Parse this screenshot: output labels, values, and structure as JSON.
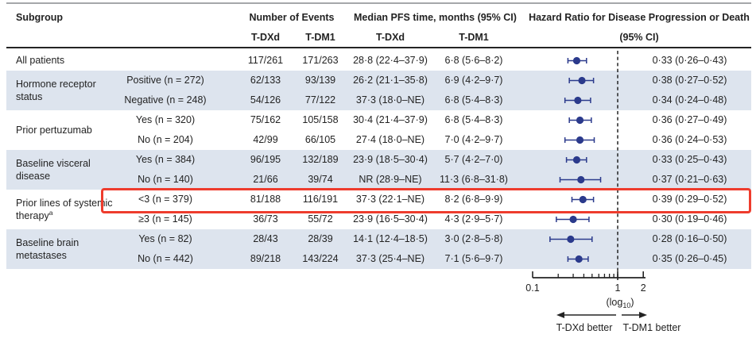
{
  "header": {
    "subgroup": "Subgroup",
    "events_group": "Number of Events",
    "pfs_group": "Median PFS time, months (95% CI)",
    "hr_group": "Hazard Ratio for Disease Progression or Death",
    "hr_group_line2": "(95% CI)",
    "events_tdxd": "T-DXd",
    "events_tdm1": "T-DM1",
    "pfs_tdxd": "T-DXd",
    "pfs_tdm1": "T-DM1"
  },
  "groups": [
    {
      "label": "All patients",
      "footnote": "",
      "row_start": 0,
      "row_span": 1
    },
    {
      "label": "Hormone receptor status",
      "footnote": "",
      "row_start": 1,
      "row_span": 2
    },
    {
      "label": "Prior pertuzumab",
      "footnote": "",
      "row_start": 3,
      "row_span": 2
    },
    {
      "label": "Baseline visceral disease",
      "footnote": "",
      "row_start": 5,
      "row_span": 2
    },
    {
      "label": "Prior lines of systemic therapy",
      "footnote": "a",
      "row_start": 7,
      "row_span": 2
    },
    {
      "label": "Baseline brain metastases",
      "footnote": "",
      "row_start": 9,
      "row_span": 2
    }
  ],
  "rows": [
    {
      "sub": "",
      "ev_tdxd": "117/261",
      "ev_tdm1": "171/263",
      "pfs_tdxd": "28·8 (22·4–37·9)",
      "pfs_tdm1": "6·8 (5·6–8·2)",
      "hr_label": "0·33 (0·26–0·43)",
      "hr": 0.33,
      "ci_low": 0.26,
      "ci_high": 0.43,
      "shaded": false,
      "highlighted": false
    },
    {
      "sub": "Positive (n = 272)",
      "ev_tdxd": "62/133",
      "ev_tdm1": "93/139",
      "pfs_tdxd": "26·2 (21·1–35·8)",
      "pfs_tdm1": "6·9 (4·2–9·7)",
      "hr_label": "0·38 (0·27–0·52)",
      "hr": 0.38,
      "ci_low": 0.27,
      "ci_high": 0.52,
      "shaded": true,
      "highlighted": false
    },
    {
      "sub": "Negative (n = 248)",
      "ev_tdxd": "54/126",
      "ev_tdm1": "77/122",
      "pfs_tdxd": "37·3 (18·0–NE)",
      "pfs_tdm1": "6·8 (5·4–8·3)",
      "hr_label": "0·34 (0·24–0·48)",
      "hr": 0.34,
      "ci_low": 0.24,
      "ci_high": 0.48,
      "shaded": true,
      "highlighted": false
    },
    {
      "sub": "Yes (n = 320)",
      "ev_tdxd": "75/162",
      "ev_tdm1": "105/158",
      "pfs_tdxd": "30·4 (21·4–37·9)",
      "pfs_tdm1": "6·8 (5·4–8·3)",
      "hr_label": "0·36 (0·27–0·49)",
      "hr": 0.36,
      "ci_low": 0.27,
      "ci_high": 0.49,
      "shaded": false,
      "highlighted": false
    },
    {
      "sub": "No (n = 204)",
      "ev_tdxd": "42/99",
      "ev_tdm1": "66/105",
      "pfs_tdxd": "27·4 (18·0–NE)",
      "pfs_tdm1": "7·0 (4·2–9·7)",
      "hr_label": "0·36 (0·24–0·53)",
      "hr": 0.36,
      "ci_low": 0.24,
      "ci_high": 0.53,
      "shaded": false,
      "highlighted": false
    },
    {
      "sub": "Yes (n = 384)",
      "ev_tdxd": "96/195",
      "ev_tdm1": "132/189",
      "pfs_tdxd": "23·9 (18·5–30·4)",
      "pfs_tdm1": "5·7 (4·2–7·0)",
      "hr_label": "0·33 (0·25–0·43)",
      "hr": 0.33,
      "ci_low": 0.25,
      "ci_high": 0.43,
      "shaded": true,
      "highlighted": false
    },
    {
      "sub": "No (n = 140)",
      "ev_tdxd": "21/66",
      "ev_tdm1": "39/74",
      "pfs_tdxd": "NR (28·9–NE)",
      "pfs_tdm1": "11·3 (6·8–31·8)",
      "hr_label": "0·37 (0·21–0·63)",
      "hr": 0.37,
      "ci_low": 0.21,
      "ci_high": 0.63,
      "shaded": true,
      "highlighted": false
    },
    {
      "sub": "<3 (n = 379)",
      "ev_tdxd": "81/188",
      "ev_tdm1": "116/191",
      "pfs_tdxd": "37·3 (22·1–NE)",
      "pfs_tdm1": "8·2 (6·8–9·9)",
      "hr_label": "0·39 (0·29–0·52)",
      "hr": 0.39,
      "ci_low": 0.29,
      "ci_high": 0.52,
      "shaded": false,
      "highlighted": true
    },
    {
      "sub": "≥3 (n = 145)",
      "ev_tdxd": "36/73",
      "ev_tdm1": "55/72",
      "pfs_tdxd": "23·9 (16·5–30·4)",
      "pfs_tdm1": "4·3 (2·9–5·7)",
      "hr_label": "0·30 (0·19–0·46)",
      "hr": 0.3,
      "ci_low": 0.19,
      "ci_high": 0.46,
      "shaded": false,
      "highlighted": false
    },
    {
      "sub": "Yes (n = 82)",
      "ev_tdxd": "28/43",
      "ev_tdm1": "28/39",
      "pfs_tdxd": "14·1 (12·4–18·5)",
      "pfs_tdm1": "3·0 (2·8–5·8)",
      "hr_label": "0·28 (0·16–0·50)",
      "hr": 0.28,
      "ci_low": 0.16,
      "ci_high": 0.5,
      "shaded": true,
      "highlighted": false
    },
    {
      "sub": "No (n = 442)",
      "ev_tdxd": "89/218",
      "ev_tdm1": "143/224",
      "pfs_tdxd": "37·3 (25·4–NE)",
      "pfs_tdm1": "7·1 (5·6–9·7)",
      "hr_label": "0·35 (0·26–0·45)",
      "hr": 0.35,
      "ci_low": 0.26,
      "ci_high": 0.45,
      "shaded": true,
      "highlighted": false
    }
  ],
  "chart_data": {
    "type": "scatter",
    "variant": "forest-plot",
    "x_axis": {
      "scale": "log10",
      "min": 0.1,
      "max": 2,
      "labeled_ticks": [
        0.1,
        1,
        2
      ],
      "tick_labels": [
        "0.1",
        "1",
        "2"
      ],
      "minor_ticks": [
        0.2,
        0.3,
        0.4,
        0.5,
        0.6,
        0.7,
        0.8,
        0.9
      ],
      "scale_label_pre": "(log",
      "scale_label_sub": "10",
      "scale_label_post": ")"
    },
    "reference_line": 1,
    "direction_labels": {
      "left": "T-DXd better",
      "right": "T-DM1 better"
    },
    "points": [
      {
        "subgroup": "All patients",
        "hr": 0.33,
        "ci_low": 0.26,
        "ci_high": 0.43
      },
      {
        "subgroup": "Hormone receptor status: Positive (n = 272)",
        "hr": 0.38,
        "ci_low": 0.27,
        "ci_high": 0.52
      },
      {
        "subgroup": "Hormone receptor status: Negative (n = 248)",
        "hr": 0.34,
        "ci_low": 0.24,
        "ci_high": 0.48
      },
      {
        "subgroup": "Prior pertuzumab: Yes (n = 320)",
        "hr": 0.36,
        "ci_low": 0.27,
        "ci_high": 0.49
      },
      {
        "subgroup": "Prior pertuzumab: No (n = 204)",
        "hr": 0.36,
        "ci_low": 0.24,
        "ci_high": 0.53
      },
      {
        "subgroup": "Baseline visceral disease: Yes (n = 384)",
        "hr": 0.33,
        "ci_low": 0.25,
        "ci_high": 0.43
      },
      {
        "subgroup": "Baseline visceral disease: No (n = 140)",
        "hr": 0.37,
        "ci_low": 0.21,
        "ci_high": 0.63
      },
      {
        "subgroup": "Prior lines of systemic therapy: <3 (n = 379)",
        "hr": 0.39,
        "ci_low": 0.29,
        "ci_high": 0.52
      },
      {
        "subgroup": "Prior lines of systemic therapy: ≥3 (n = 145)",
        "hr": 0.3,
        "ci_low": 0.19,
        "ci_high": 0.46
      },
      {
        "subgroup": "Baseline brain metastases: Yes (n = 82)",
        "hr": 0.28,
        "ci_low": 0.16,
        "ci_high": 0.5
      },
      {
        "subgroup": "Baseline brain metastases: No (n = 442)",
        "hr": 0.35,
        "ci_low": 0.26,
        "ci_high": 0.45
      }
    ]
  },
  "colors": {
    "marker": "#2b3a8c",
    "shaded_row": "#dde4ee",
    "highlight_border": "#ee3c2d",
    "rule": "#242424",
    "top_rule": "#a5a7aa",
    "text": "#232323"
  }
}
